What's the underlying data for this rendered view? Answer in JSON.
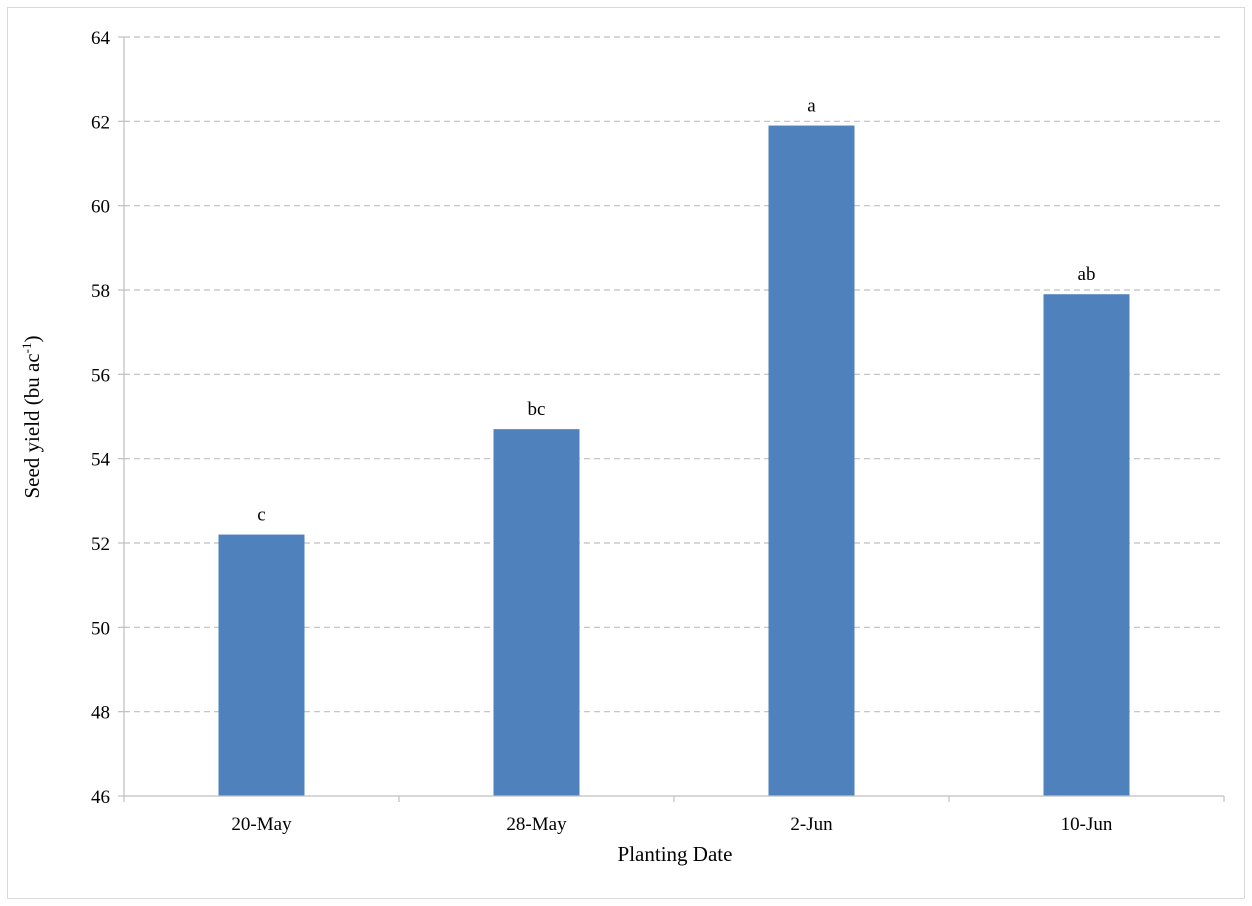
{
  "chart_data": {
    "type": "bar",
    "title": "",
    "xlabel": "Planting Date",
    "ylabel": {
      "main": "Seed yield (bu ac",
      "superscript": "-1",
      "close": ")"
    },
    "categories": [
      "20-May",
      "28-May",
      "2-Jun",
      "10-Jun"
    ],
    "values": [
      52.2,
      54.7,
      61.9,
      57.9
    ],
    "data_labels": [
      "c",
      "bc",
      "a",
      "ab"
    ],
    "ylim": [
      46,
      64
    ],
    "yticks": [
      "46",
      "48",
      "50",
      "52",
      "54",
      "56",
      "58",
      "60",
      "62",
      "64"
    ],
    "grid": "horizontal-dashed",
    "legend": "none",
    "colors": {
      "bar": "#4f81bd",
      "grid": "#bfbfbf",
      "axis": "#bfbfbf",
      "frame": "#d9d9d9"
    }
  }
}
